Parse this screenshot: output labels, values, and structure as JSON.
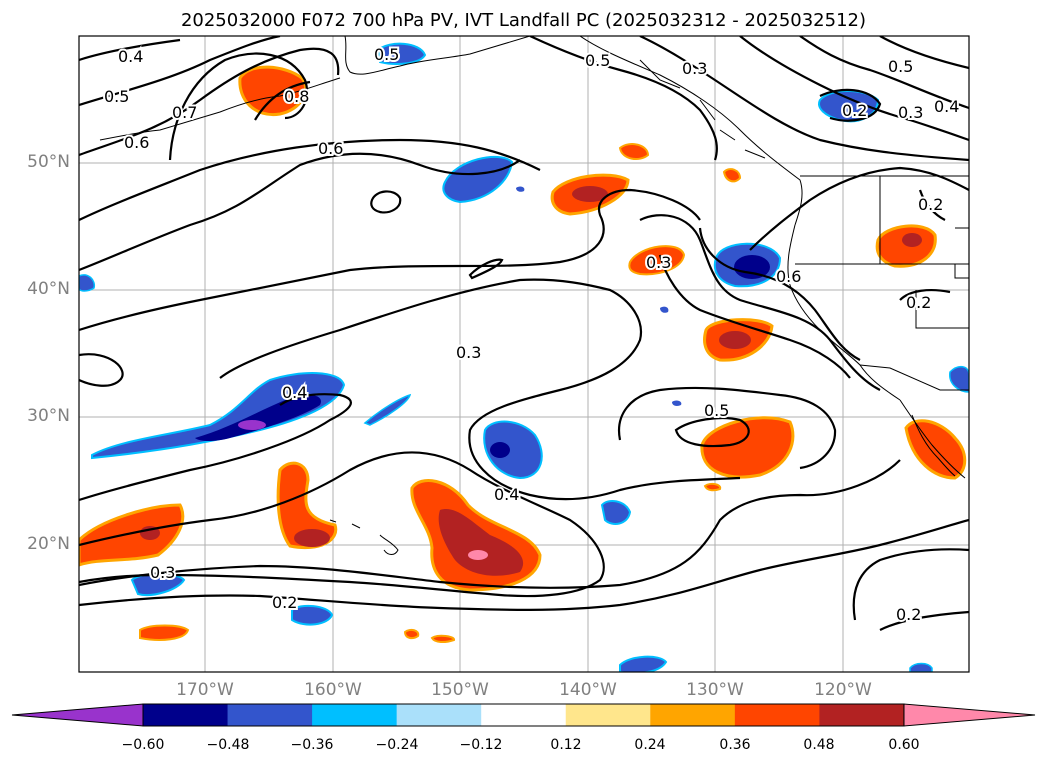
{
  "title": "2025032000 F072 700 hPa PV, IVT Landfall PC (2025032312 - 2025032512)",
  "lon_labels": [
    "170°W",
    "160°W",
    "150°W",
    "140°W",
    "130°W",
    "120°W"
  ],
  "lat_labels": [
    "50°N",
    "40°N",
    "30°N",
    "20°N"
  ],
  "colorbar": {
    "ticks": [
      "−0.60",
      "−0.48",
      "−0.36",
      "−0.24",
      "−0.12",
      "0.12",
      "0.24",
      "0.36",
      "0.48",
      "0.60"
    ],
    "colors": [
      "#9933cc",
      "#00008b",
      "#3355cc",
      "#00bfff",
      "#aae0fa",
      "#ffffff",
      "#ffe68c",
      "#ffa500",
      "#ff4500",
      "#b22222",
      "#ff88aa"
    ]
  },
  "contour_labels": [
    "0.4",
    "0.5",
    "0.6",
    "0.7",
    "0.8",
    "0.5",
    "0.6",
    "0.5",
    "0.3",
    "0.5",
    "0.2",
    "0.3",
    "0.4",
    "0.2",
    "0.3",
    "0.6",
    "0.2",
    "0.3",
    "0.4",
    "0.5",
    "0.4",
    "0.3",
    "0.2",
    "0.2"
  ]
}
